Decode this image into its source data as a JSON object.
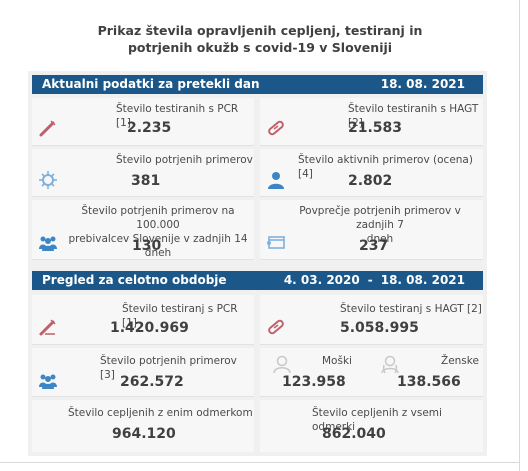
{
  "title": {
    "line1": "Prikaz števila opravljenih cepljenj, testiranj in",
    "line2": "potrjenih okužb s covid-19 v Sloveniji"
  },
  "recent": {
    "heading": "Aktualni podatki za pretekli dan",
    "date": "18. 08. 2021",
    "pcr": {
      "label": "Število testiranih s PCR [1]",
      "value": "2.235"
    },
    "hagt": {
      "label": "Število testiranih s HAGT [2]",
      "value": "21.583"
    },
    "confirmed": {
      "label": "Število potrjenih primerov",
      "value": "381"
    },
    "active": {
      "label": "Število aktivnih primerov (ocena) [4]",
      "value": "2.802"
    },
    "per100k": {
      "label_line1": "Število potrjenih primerov na 100.000",
      "label_line2": "prebivalcev Slovenije v zadnjih 14 dneh",
      "value": "130"
    },
    "avg7": {
      "label_line1": "Povprečje potrjenih primerov v zadnjih 7",
      "label_line2": "dneh",
      "value": "237"
    }
  },
  "total": {
    "heading": "Pregled za celotno obdobje",
    "date_from": "4. 03. 2020",
    "date_sep": "-",
    "date_to": "18. 08. 2021",
    "pcr": {
      "label": "Število testiranj s PCR [1]",
      "value": "1.420.969"
    },
    "hagt": {
      "label": "Število testiranj s HAGT [2]",
      "value": "5.058.995"
    },
    "confirmed": {
      "label": "Število potrjenih primerov [3]",
      "value": "262.572"
    },
    "male": {
      "label": "Moški",
      "value": "123.958"
    },
    "female": {
      "label": "Ženske",
      "value": "138.566"
    },
    "vacc_one": {
      "label": "Število cepljenih z enim odmerkom",
      "value": "964.120"
    },
    "vacc_all": {
      "label": "Število cepljenih z vsemi odmerki",
      "value": "862.040"
    }
  },
  "icons": {
    "pcr": "test-tube-icon",
    "hagt": "rapid-test-icon",
    "virus": "virus-icon",
    "person": "person-icon",
    "group": "group-icon",
    "calendar": "calendar-icon",
    "male": "male-icon",
    "female": "female-icon"
  },
  "colors": {
    "header_bar": "#1b5788",
    "panel": "#f0f0f0",
    "icon_red": "#c0606a",
    "icon_blue": "#3d86c6"
  }
}
